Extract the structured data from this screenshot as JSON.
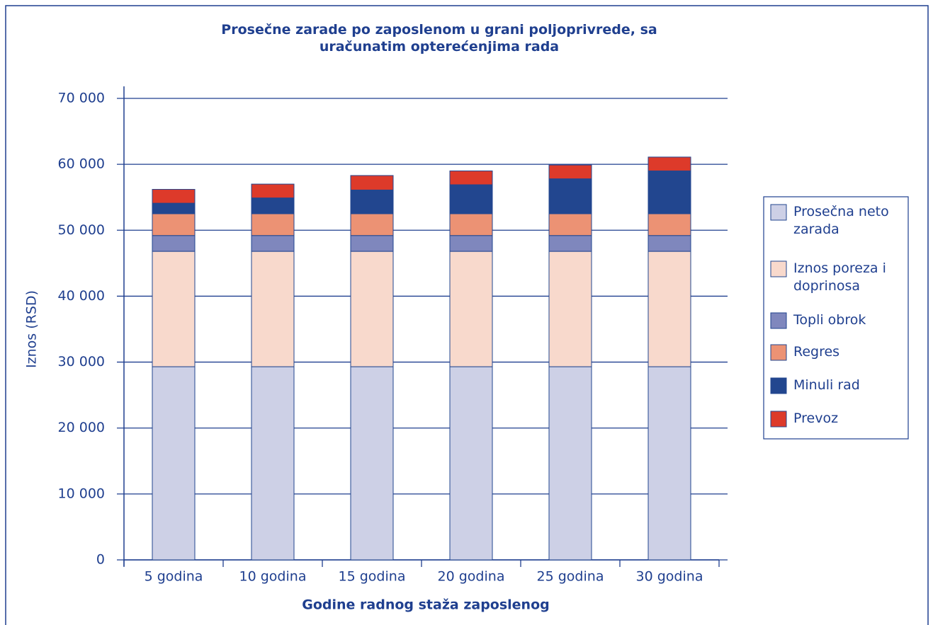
{
  "chart_data": {
    "type": "stacked_bar",
    "title": "Prosečne zarade po zaposlenom u grani poljoprivrede, sa uračunatim opterećenjima rada",
    "x_label": "Godine radnog staža zaposlenog",
    "y_label": "Iznos (RSD)",
    "categories": [
      "5 godina",
      "10 godina",
      "15 godina",
      "20 godina",
      "25 godina",
      "30 godina"
    ],
    "series": [
      {
        "name": "Prosečna neto zarada",
        "color": "#cdd0e6",
        "values": [
          29300,
          29300,
          29300,
          29300,
          29300,
          29300
        ]
      },
      {
        "name": "Iznos poreza i doprinosa",
        "color": "#f8d9cc",
        "values": [
          17500,
          17500,
          17500,
          17500,
          17500,
          17500
        ]
      },
      {
        "name": "Topli obrok",
        "color": "#7f87bd",
        "values": [
          2400,
          2400,
          2400,
          2400,
          2400,
          2400
        ]
      },
      {
        "name": "Regres",
        "color": "#ec9274",
        "values": [
          3300,
          3300,
          3300,
          3300,
          3300,
          3300
        ]
      },
      {
        "name": "Minuli rad",
        "color": "#22468f",
        "values": [
          1600,
          2400,
          3600,
          4400,
          5300,
          6500
        ]
      },
      {
        "name": "Prevoz",
        "color": "#dd3a2a",
        "values": [
          2100,
          2100,
          2200,
          2100,
          2100,
          2100
        ]
      }
    ],
    "ylim": [
      0,
      70000
    ],
    "yticks": [
      0,
      {
        "value": 10000,
        "label": "10 000"
      },
      {
        "value": 20000,
        "label": "20 000"
      },
      {
        "value": 30000,
        "label": "30 000"
      },
      {
        "value": 40000,
        "label": "40 000"
      },
      {
        "value": 50000,
        "label": "50 000"
      },
      {
        "value": 60000,
        "label": "60 000"
      },
      {
        "value": 70000,
        "label": "70 000"
      }
    ],
    "grid": true,
    "legend": "right"
  }
}
